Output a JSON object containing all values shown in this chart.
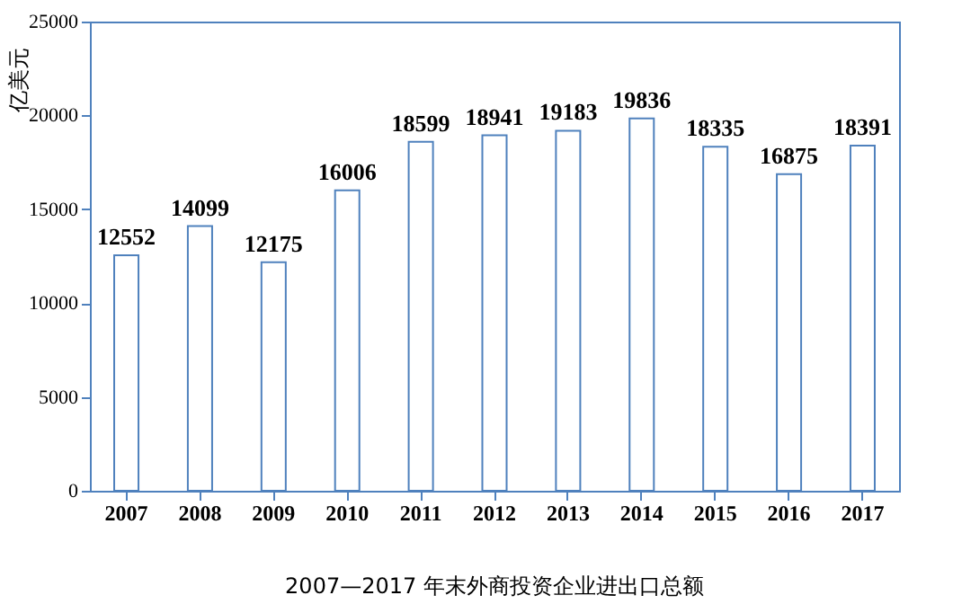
{
  "chart_data": {
    "type": "bar",
    "title": "2007—2017 年末外商投资企业进出口总额",
    "ylabel": "亿美元",
    "categories": [
      "2007",
      "2008",
      "2009",
      "2010",
      "2011",
      "2012",
      "2013",
      "2014",
      "2015",
      "2016",
      "2017"
    ],
    "values": [
      12552,
      14099,
      12175,
      16006,
      18599,
      18941,
      19183,
      19836,
      18335,
      16875,
      18391
    ],
    "color": "#4f81bd",
    "ylim": [
      0,
      25000
    ],
    "yticks": [
      0,
      5000,
      10000,
      15000,
      20000,
      25000
    ],
    "data_labels": true,
    "grid": false
  }
}
